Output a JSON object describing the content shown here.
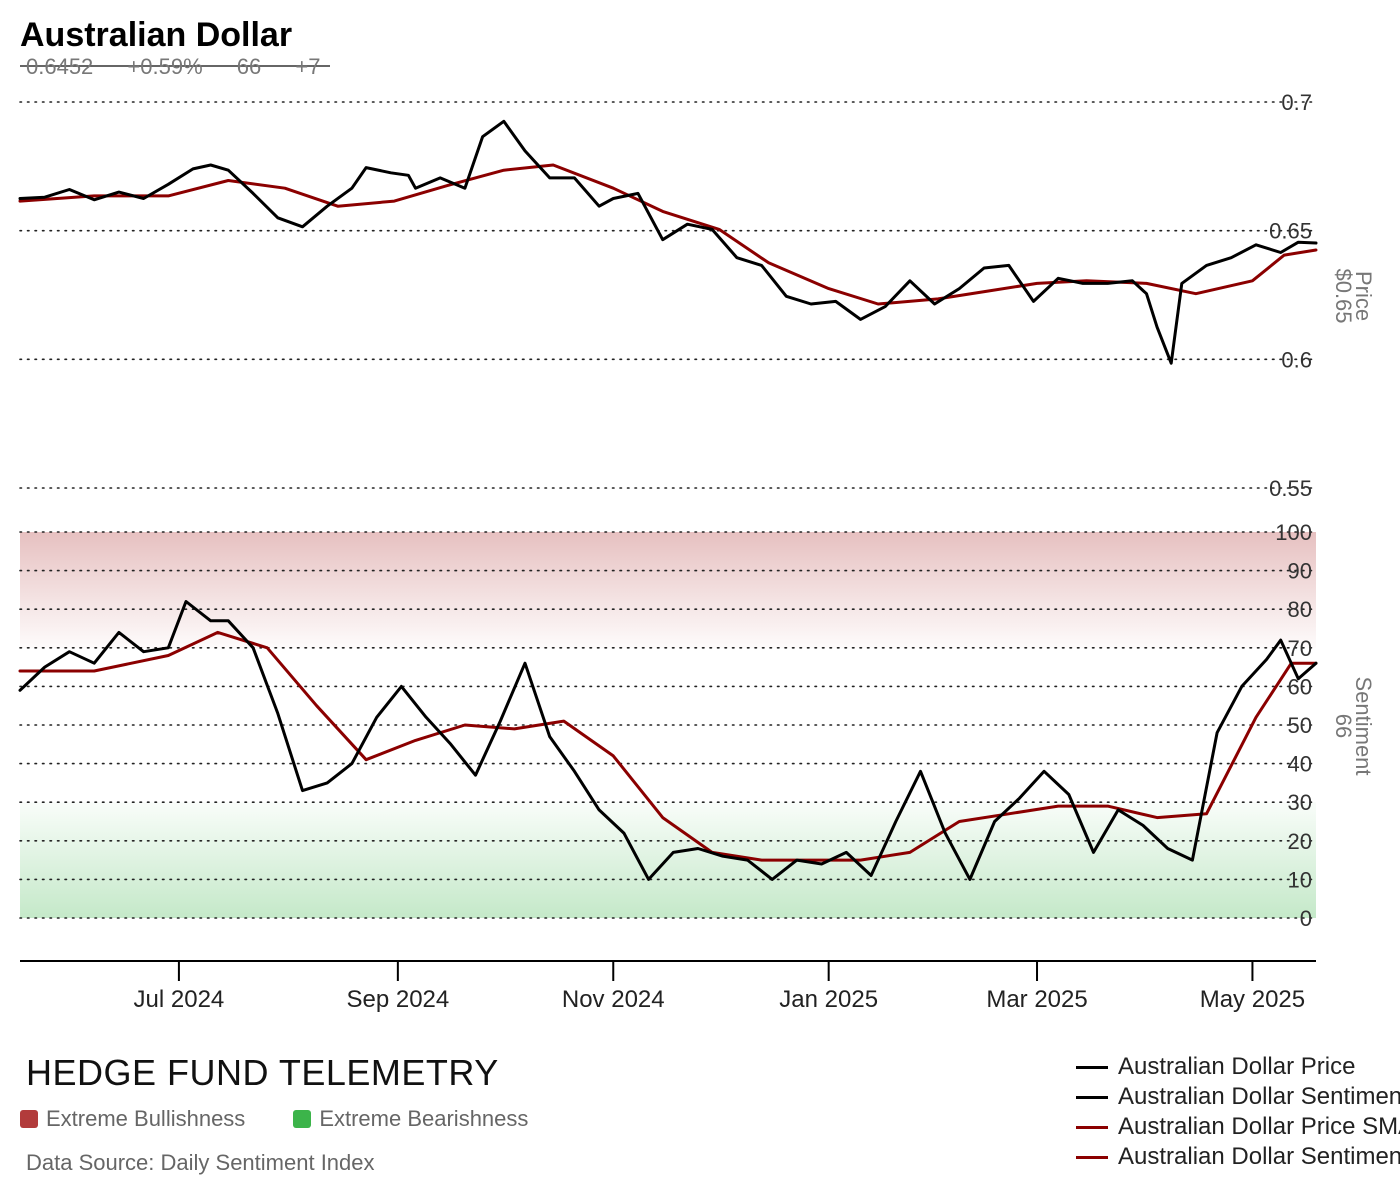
{
  "header": {
    "title": "Australian Dollar",
    "price": "0.6452",
    "change_pct": "+0.59%",
    "sentiment": "66",
    "sentiment_change": "+7"
  },
  "footer": {
    "brand": "HEDGE FUND TELEMETRY",
    "bull_label": "Extreme Bullishness",
    "bear_label": "Extreme Bearishness",
    "bull_color": "#b23b3b",
    "bear_color": "#3cb44a",
    "source": "Data Source: Daily Sentiment Index"
  },
  "colors": {
    "price": "#000000",
    "sma": "#8b0000"
  },
  "chart_data": [
    {
      "type": "line",
      "panel": "price",
      "ylabel": "Price",
      "ylabel_value": "$0.65",
      "ylim": [
        0.55,
        0.7
      ],
      "yticks": [
        0.55,
        0.6,
        0.65,
        0.7
      ],
      "ytick_labels": [
        "0.55",
        "0.6",
        "0.65",
        "0.7"
      ],
      "grid": true,
      "series": [
        {
          "name": "Australian Dollar Price",
          "color": "#000000",
          "points": [
            [
              "2024-05-17",
              0.6625
            ],
            [
              "2024-05-24",
              0.663
            ],
            [
              "2024-05-31",
              0.666
            ],
            [
              "2024-06-07",
              0.662
            ],
            [
              "2024-06-14",
              0.665
            ],
            [
              "2024-06-21",
              0.6625
            ],
            [
              "2024-06-28",
              0.668
            ],
            [
              "2024-07-05",
              0.674
            ],
            [
              "2024-07-10",
              0.6755
            ],
            [
              "2024-07-15",
              0.6735
            ],
            [
              "2024-07-22",
              0.6645
            ],
            [
              "2024-07-29",
              0.655
            ],
            [
              "2024-08-05",
              0.6515
            ],
            [
              "2024-08-12",
              0.6595
            ],
            [
              "2024-08-19",
              0.6665
            ],
            [
              "2024-08-23",
              0.6745
            ],
            [
              "2024-08-30",
              0.6725
            ],
            [
              "2024-09-04",
              0.6715
            ],
            [
              "2024-09-06",
              0.6665
            ],
            [
              "2024-09-13",
              0.6705
            ],
            [
              "2024-09-20",
              0.6665
            ],
            [
              "2024-09-25",
              0.6865
            ],
            [
              "2024-10-01",
              0.6925
            ],
            [
              "2024-10-07",
              0.681
            ],
            [
              "2024-10-14",
              0.6705
            ],
            [
              "2024-10-21",
              0.6705
            ],
            [
              "2024-10-28",
              0.6595
            ],
            [
              "2024-11-01",
              0.6625
            ],
            [
              "2024-11-08",
              0.6645
            ],
            [
              "2024-11-15",
              0.6465
            ],
            [
              "2024-11-22",
              0.6525
            ],
            [
              "2024-11-29",
              0.6505
            ],
            [
              "2024-12-06",
              0.6395
            ],
            [
              "2024-12-13",
              0.6365
            ],
            [
              "2024-12-20",
              0.6245
            ],
            [
              "2024-12-27",
              0.6215
            ],
            [
              "2025-01-03",
              0.6225
            ],
            [
              "2025-01-10",
              0.6155
            ],
            [
              "2025-01-17",
              0.6205
            ],
            [
              "2025-01-24",
              0.6305
            ],
            [
              "2025-01-31",
              0.6215
            ],
            [
              "2025-02-07",
              0.6275
            ],
            [
              "2025-02-14",
              0.6355
            ],
            [
              "2025-02-21",
              0.6365
            ],
            [
              "2025-02-28",
              0.6225
            ],
            [
              "2025-03-07",
              0.6315
            ],
            [
              "2025-03-14",
              0.6295
            ],
            [
              "2025-03-21",
              0.6295
            ],
            [
              "2025-03-28",
              0.6305
            ],
            [
              "2025-04-01",
              0.6255
            ],
            [
              "2025-04-04",
              0.6125
            ],
            [
              "2025-04-08",
              0.5985
            ],
            [
              "2025-04-11",
              0.6295
            ],
            [
              "2025-04-18",
              0.6365
            ],
            [
              "2025-04-25",
              0.6395
            ],
            [
              "2025-05-02",
              0.6445
            ],
            [
              "2025-05-09",
              0.6415
            ],
            [
              "2025-05-14",
              0.6455
            ],
            [
              "2025-05-19",
              0.6452
            ]
          ]
        },
        {
          "name": "Australian Dollar Price SMA",
          "color": "#8b0000",
          "points": [
            [
              "2024-05-17",
              0.6615
            ],
            [
              "2024-06-07",
              0.6635
            ],
            [
              "2024-06-28",
              0.6635
            ],
            [
              "2024-07-15",
              0.6695
            ],
            [
              "2024-07-31",
              0.6665
            ],
            [
              "2024-08-15",
              0.6595
            ],
            [
              "2024-08-31",
              0.6615
            ],
            [
              "2024-09-15",
              0.6675
            ],
            [
              "2024-10-01",
              0.6735
            ],
            [
              "2024-10-15",
              0.6755
            ],
            [
              "2024-11-01",
              0.6665
            ],
            [
              "2024-11-15",
              0.6575
            ],
            [
              "2024-12-01",
              0.6505
            ],
            [
              "2024-12-15",
              0.6375
            ],
            [
              "2025-01-01",
              0.6275
            ],
            [
              "2025-01-15",
              0.6215
            ],
            [
              "2025-02-01",
              0.6235
            ],
            [
              "2025-02-15",
              0.6265
            ],
            [
              "2025-03-01",
              0.6295
            ],
            [
              "2025-03-15",
              0.6305
            ],
            [
              "2025-04-01",
              0.6295
            ],
            [
              "2025-04-15",
              0.6255
            ],
            [
              "2025-05-01",
              0.6305
            ],
            [
              "2025-05-10",
              0.6405
            ],
            [
              "2025-05-19",
              0.6425
            ]
          ]
        }
      ]
    },
    {
      "type": "line",
      "panel": "sentiment",
      "ylabel": "Sentiment",
      "ylabel_value": "66",
      "ylim": [
        0,
        100
      ],
      "yticks": [
        0,
        10,
        20,
        30,
        40,
        50,
        60,
        70,
        80,
        90,
        100
      ],
      "ytick_labels": [
        "0",
        "10",
        "20",
        "30",
        "40",
        "50",
        "60",
        "70",
        "80",
        "90",
        "100"
      ],
      "grid": true,
      "zones": [
        {
          "name": "Extreme Bullishness",
          "from": 70,
          "to": 100,
          "color": "#b23b3b"
        },
        {
          "name": "Extreme Bearishness",
          "from": 0,
          "to": 30,
          "color": "#3cb44a"
        }
      ],
      "series": [
        {
          "name": "Australian Dollar Sentiment",
          "color": "#000000",
          "points": [
            [
              "2024-05-17",
              59
            ],
            [
              "2024-05-24",
              65
            ],
            [
              "2024-05-31",
              69
            ],
            [
              "2024-06-07",
              66
            ],
            [
              "2024-06-14",
              74
            ],
            [
              "2024-06-21",
              69
            ],
            [
              "2024-06-28",
              70
            ],
            [
              "2024-07-03",
              82
            ],
            [
              "2024-07-10",
              77
            ],
            [
              "2024-07-15",
              77
            ],
            [
              "2024-07-22",
              70
            ],
            [
              "2024-07-29",
              53
            ],
            [
              "2024-08-05",
              33
            ],
            [
              "2024-08-12",
              35
            ],
            [
              "2024-08-19",
              40
            ],
            [
              "2024-08-26",
              52
            ],
            [
              "2024-09-02",
              60
            ],
            [
              "2024-09-09",
              52
            ],
            [
              "2024-09-16",
              45
            ],
            [
              "2024-09-23",
              37
            ],
            [
              "2024-09-30",
              51
            ],
            [
              "2024-10-07",
              66
            ],
            [
              "2024-10-14",
              47
            ],
            [
              "2024-10-21",
              38
            ],
            [
              "2024-10-28",
              28
            ],
            [
              "2024-11-04",
              22
            ],
            [
              "2024-11-11",
              10
            ],
            [
              "2024-11-18",
              17
            ],
            [
              "2024-11-25",
              18
            ],
            [
              "2024-12-02",
              16
            ],
            [
              "2024-12-09",
              15
            ],
            [
              "2024-12-16",
              10
            ],
            [
              "2024-12-23",
              15
            ],
            [
              "2024-12-30",
              14
            ],
            [
              "2025-01-06",
              17
            ],
            [
              "2025-01-13",
              11
            ],
            [
              "2025-01-20",
              25
            ],
            [
              "2025-01-27",
              38
            ],
            [
              "2025-02-03",
              22
            ],
            [
              "2025-02-10",
              10
            ],
            [
              "2025-02-17",
              25
            ],
            [
              "2025-02-24",
              31
            ],
            [
              "2025-03-03",
              38
            ],
            [
              "2025-03-10",
              32
            ],
            [
              "2025-03-17",
              17
            ],
            [
              "2025-03-24",
              28
            ],
            [
              "2025-03-31",
              24
            ],
            [
              "2025-04-07",
              18
            ],
            [
              "2025-04-14",
              15
            ],
            [
              "2025-04-21",
              48
            ],
            [
              "2025-04-28",
              60
            ],
            [
              "2025-05-05",
              67
            ],
            [
              "2025-05-09",
              72
            ],
            [
              "2025-05-14",
              62
            ],
            [
              "2025-05-19",
              66
            ]
          ]
        },
        {
          "name": "Australian Dollar Sentiment SMA",
          "color": "#8b0000",
          "points": [
            [
              "2024-05-17",
              64
            ],
            [
              "2024-06-07",
              64
            ],
            [
              "2024-06-28",
              68
            ],
            [
              "2024-07-12",
              74
            ],
            [
              "2024-07-26",
              70
            ],
            [
              "2024-08-09",
              55
            ],
            [
              "2024-08-23",
              41
            ],
            [
              "2024-09-06",
              46
            ],
            [
              "2024-09-20",
              50
            ],
            [
              "2024-10-04",
              49
            ],
            [
              "2024-10-18",
              51
            ],
            [
              "2024-11-01",
              42
            ],
            [
              "2024-11-15",
              26
            ],
            [
              "2024-11-29",
              17
            ],
            [
              "2024-12-13",
              15
            ],
            [
              "2024-12-27",
              15
            ],
            [
              "2025-01-10",
              15
            ],
            [
              "2025-01-24",
              17
            ],
            [
              "2025-02-07",
              25
            ],
            [
              "2025-02-21",
              27
            ],
            [
              "2025-03-07",
              29
            ],
            [
              "2025-03-21",
              29
            ],
            [
              "2025-04-04",
              26
            ],
            [
              "2025-04-18",
              27
            ],
            [
              "2025-05-02",
              52
            ],
            [
              "2025-05-12",
              66
            ],
            [
              "2025-05-19",
              66
            ]
          ]
        }
      ]
    }
  ],
  "x_axis": {
    "tick_labels": [
      "Jul 2024",
      "Sep 2024",
      "Nov 2024",
      "Jan 2025",
      "Mar 2025",
      "May 2025"
    ],
    "tick_dates": [
      "2024-07-01",
      "2024-09-01",
      "2024-11-01",
      "2025-01-01",
      "2025-03-01",
      "2025-05-01"
    ],
    "range": [
      "2024-05-17",
      "2025-05-19"
    ]
  },
  "legend": {
    "placement": "bottom-right",
    "items": [
      {
        "label": "Australian Dollar Price",
        "color": "#000000"
      },
      {
        "label": "Australian Dollar Sentiment",
        "color": "#000000"
      },
      {
        "label": "Australian Dollar Price SMA",
        "color": "#8b0000"
      },
      {
        "label": "Australian Dollar Sentiment SMA",
        "color": "#8b0000"
      }
    ]
  }
}
